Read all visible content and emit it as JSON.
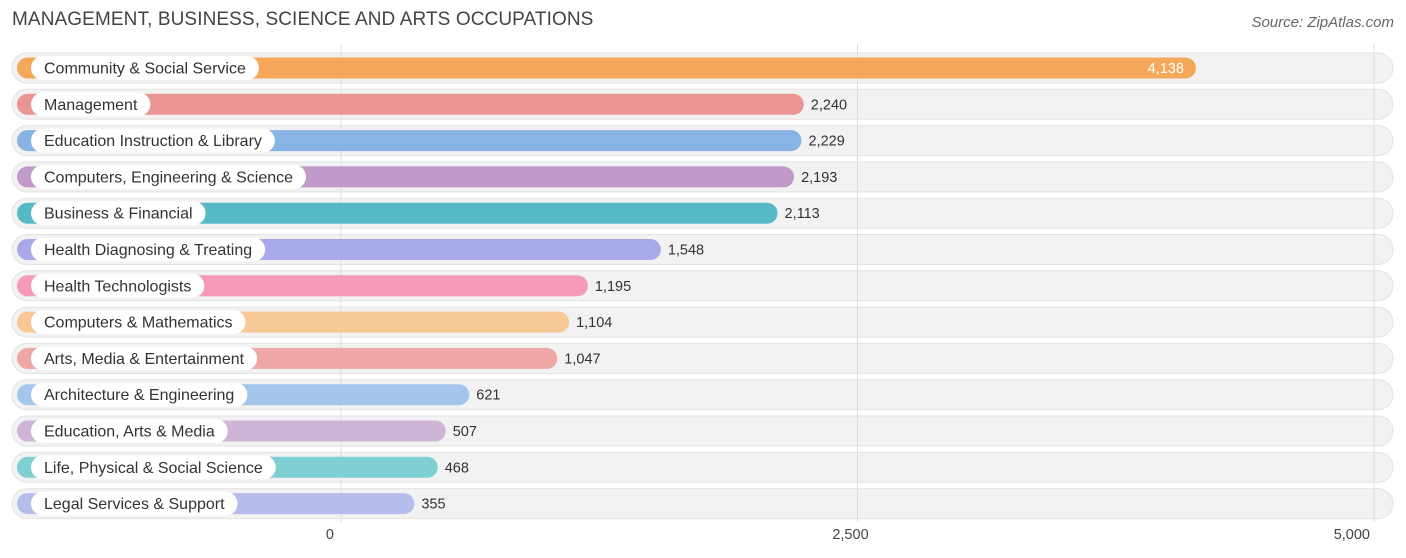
{
  "header": {
    "title": "MANAGEMENT, BUSINESS, SCIENCE AND ARTS OCCUPATIONS",
    "source": "Source: ZipAtlas.com"
  },
  "chart_data": {
    "type": "bar",
    "orientation": "horizontal",
    "title": "MANAGEMENT, BUSINESS, SCIENCE AND ARTS OCCUPATIONS",
    "xlim": [
      0,
      5000
    ],
    "x_ticks": [
      0,
      2500,
      5000
    ],
    "x_tick_labels": [
      "0",
      "2,500",
      "5,000"
    ],
    "grid": true,
    "categories": [
      "Community & Social Service",
      "Management",
      "Education Instruction & Library",
      "Computers, Engineering & Science",
      "Business & Financial",
      "Health Diagnosing & Treating",
      "Health Technologists",
      "Computers & Mathematics",
      "Arts, Media & Entertainment",
      "Architecture & Engineering",
      "Education, Arts & Media",
      "Life, Physical & Social Science",
      "Legal Services & Support"
    ],
    "values": [
      4138,
      2240,
      2229,
      2193,
      2113,
      1548,
      1195,
      1104,
      1047,
      621,
      507,
      468,
      355
    ],
    "value_labels": [
      "4,138",
      "2,240",
      "2,229",
      "2,193",
      "2,113",
      "1,548",
      "1,195",
      "1,104",
      "1,047",
      "621",
      "507",
      "468",
      "355"
    ],
    "colors": [
      "#f5a85a",
      "#ea9593",
      "#88b3e5",
      "#c09ac9",
      "#55b9c6",
      "#a8a9e8",
      "#f59ab9",
      "#f8c796",
      "#eea7a5",
      "#a5c6ec",
      "#ceb4d6",
      "#7fcfd3",
      "#b6bdec"
    ]
  }
}
